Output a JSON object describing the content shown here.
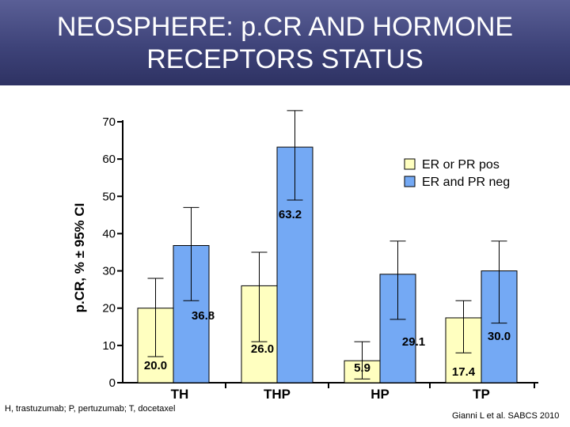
{
  "slide": {
    "title": "NEOSPHERE: p.CR AND HORMONE\nRECEPTORS STATUS",
    "footnote": "H, trastuzumab; P, pertuzumab; T, docetaxel",
    "citation": "Gianni L et al. SABCS 2010"
  },
  "colors": {
    "title_bg": "#3e4379",
    "er_pos": "#ffffc0",
    "er_neg": "#74a9f4",
    "axis": "#000000"
  },
  "chart_data": {
    "type": "bar",
    "title": "",
    "xlabel": "",
    "ylabel": "p.CR, % ± 95% CI",
    "ylim": [
      0,
      70
    ],
    "yticks": [
      0,
      10,
      20,
      30,
      40,
      50,
      60,
      70
    ],
    "categories": [
      "TH",
      "THP",
      "HP",
      "TP"
    ],
    "legend_position": "top-right",
    "series": [
      {
        "name": "ER or PR pos",
        "values": [
          20.0,
          26.0,
          5.9,
          17.4
        ],
        "labels": [
          "20.0",
          "26.0",
          "5.9",
          "17.4"
        ],
        "ci_low": [
          7,
          11,
          1,
          8
        ],
        "ci_high": [
          28,
          35,
          11,
          22
        ]
      },
      {
        "name": "ER and PR neg",
        "values": [
          36.8,
          63.2,
          29.1,
          30.0
        ],
        "labels": [
          "36.8",
          "63.2",
          "29.1",
          "30.0"
        ],
        "ci_low": [
          22,
          49,
          17,
          16
        ],
        "ci_high": [
          47,
          73,
          38,
          38
        ]
      }
    ]
  }
}
